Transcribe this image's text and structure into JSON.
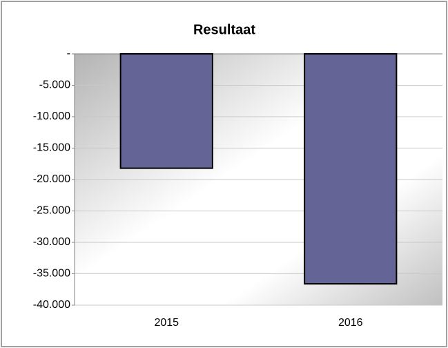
{
  "chart_data": {
    "type": "bar",
    "title": "Resultaat",
    "categories": [
      "2015",
      "2016"
    ],
    "values": [
      -18200,
      -36600
    ],
    "color": "#646496",
    "ylim": [
      -40000,
      0
    ],
    "yticks": [
      {
        "value": 0,
        "label": "-"
      },
      {
        "value": -5000,
        "label": "-5.000"
      },
      {
        "value": -10000,
        "label": "-10.000"
      },
      {
        "value": -15000,
        "label": "-15.000"
      },
      {
        "value": -20000,
        "label": "-20.000"
      },
      {
        "value": -25000,
        "label": "-25.000"
      },
      {
        "value": -30000,
        "label": "-30.000"
      },
      {
        "value": -35000,
        "label": "-35.000"
      },
      {
        "value": -40000,
        "label": "-40.000"
      }
    ],
    "grid": true
  }
}
